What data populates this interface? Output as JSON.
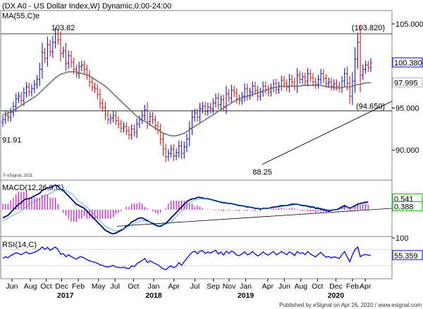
{
  "chart_data": [
    {
      "type": "candlestick",
      "title": "(DX A0 - US Dollar Index,W) Dynamic,0:00-24:00",
      "indicator_label": "MA(55,C)e",
      "ylim": [
        86.5,
        106.5
      ],
      "y_ticks": [
        "105.000",
        "95.000",
        "90.000"
      ],
      "y_tick_values": [
        105,
        95,
        90
      ],
      "price_tags": [
        {
          "label": "100.380",
          "value": 100.38,
          "color": "#0000ff"
        },
        {
          "label": "97.995",
          "value": 97.995,
          "color": "#b4b4b4"
        }
      ],
      "annotations": [
        {
          "text": "103.82",
          "t": 0.16,
          "value": 103.82
        },
        {
          "text": "91.91",
          "t": 0.0,
          "value": 91.91
        },
        {
          "text": "88.25",
          "t": 0.705,
          "value": 88.25
        },
        {
          "text": "(103.820)",
          "t": 0.94,
          "value": 103.82
        },
        {
          "text": "(94.650)",
          "t": 0.94,
          "value": 94.65
        }
      ],
      "horizontal_lines": [
        103.82,
        94.65
      ],
      "trendline": {
        "from": [
          0.705,
          88.3
        ],
        "to": [
          1.0,
          95.8
        ]
      },
      "close": [
        93.6,
        94.1,
        93.9,
        94.5,
        95.2,
        96.1,
        96.4,
        95.9,
        96.8,
        97.5,
        96.9,
        97.3,
        97.8,
        98.4,
        99.6,
        101.6,
        100.9,
        102.5,
        101.7,
        102.8,
        103.82,
        103.1,
        101.5,
        101.8,
        100.3,
        101.2,
        100.4,
        99.6,
        99.1,
        99.9,
        100.1,
        99.6,
        98.9,
        98.1,
        97.5,
        97.3,
        96.6,
        95.6,
        95.1,
        94.2,
        93.6,
        93.8,
        94.1,
        93.5,
        93.1,
        92.6,
        92.8,
        92.3,
        91.8,
        92.5,
        92.1,
        93.1,
        93.6,
        94.1,
        94.8,
        93.4,
        94.0,
        93.6,
        92.9,
        92.4,
        91.3,
        90.1,
        89.2,
        89.6,
        90.1,
        89.3,
        89.7,
        90.5,
        89.6,
        90.4,
        91.3,
        92.6,
        93.9,
        94.4,
        93.9,
        94.9,
        95.2,
        94.6,
        95.1,
        94.9,
        95.6,
        96.2,
        95.4,
        96.0,
        95.2,
        96.7,
        96.2,
        97.1,
        96.8,
        96.1,
        95.9,
        96.4,
        97.3,
        96.5,
        96.9,
        97.6,
        97.1,
        96.4,
        96.9,
        97.6,
        97.2,
        96.9,
        97.4,
        97.9,
        97.2,
        97.6,
        98.3,
        97.9,
        97.5,
        98.4,
        98.1,
        97.6,
        98.9,
        98.4,
        98.7,
        98.2,
        99.1,
        98.6,
        98.1,
        97.8,
        98.4,
        99.1,
        98.5,
        97.9,
        98.1,
        97.6,
        97.9,
        97.6,
        97.4,
        98.2,
        99.1,
        97.9,
        96.4,
        98.2,
        100.8,
        102.8,
        98.9,
        99.6,
        100.1,
        99.8,
        100.38
      ],
      "ma_55": [
        94.2,
        94.3,
        94.4,
        94.5,
        94.7,
        94.9,
        95.1,
        95.3,
        95.5,
        95.7,
        95.9,
        96.1,
        96.3,
        96.5,
        96.8,
        97.1,
        97.4,
        97.7,
        98.0,
        98.3,
        98.6,
        98.8,
        99.0,
        99.1,
        99.2,
        99.3,
        99.3,
        99.3,
        99.3,
        99.2,
        99.1,
        99.0,
        98.9,
        98.8,
        98.6,
        98.4,
        98.2,
        98.0,
        97.8,
        97.6,
        97.3,
        97.0,
        96.7,
        96.4,
        96.1,
        95.8,
        95.5,
        95.2,
        94.9,
        94.6,
        94.3,
        94.0,
        93.8,
        93.6,
        93.4,
        93.2,
        93.0,
        92.8,
        92.6,
        92.4,
        92.2,
        92.0,
        91.9,
        91.8,
        91.7,
        91.7,
        91.7,
        91.8,
        91.9,
        92.0,
        92.2,
        92.4,
        92.6,
        92.8,
        93.0,
        93.2,
        93.4,
        93.6,
        93.8,
        94.0,
        94.2,
        94.4,
        94.6,
        94.8,
        95.0,
        95.2,
        95.4,
        95.6,
        95.8,
        96.0,
        96.1,
        96.2,
        96.3,
        96.4,
        96.5,
        96.6,
        96.7,
        96.8,
        96.9,
        97.0,
        97.1,
        97.2,
        97.3,
        97.4,
        97.5,
        97.5,
        97.6,
        97.6,
        97.6,
        97.6,
        97.6,
        97.6,
        97.6,
        97.6,
        97.7,
        97.7,
        97.7,
        97.7,
        97.7,
        97.7,
        97.7,
        97.7,
        97.6,
        97.6,
        97.5,
        97.5,
        97.4,
        97.4,
        97.4,
        97.4,
        97.5,
        97.5,
        97.5,
        97.6,
        97.7,
        97.8,
        97.8,
        97.9,
        98.0,
        98.0,
        97.995
      ],
      "x_labels": [
        "Jun",
        "Aug",
        "Oct",
        "Dec",
        "Feb",
        "May",
        "Jul",
        "Oct",
        "Jan",
        "Apr",
        "Jul",
        "Sep",
        "Nov",
        "Jan",
        "Apr",
        "Jun",
        "Aug",
        "Oct",
        "Dec",
        "Feb",
        "Apr"
      ],
      "x_label_positions": [
        0.025,
        0.075,
        0.118,
        0.16,
        0.205,
        0.26,
        0.305,
        0.355,
        0.41,
        0.465,
        0.522,
        0.572,
        0.615,
        0.66,
        0.72,
        0.765,
        0.81,
        0.855,
        0.905,
        0.95,
        0.985
      ],
      "year_labels": [
        {
          "text": "2017",
          "t": 0.17
        },
        {
          "text": "2018",
          "t": 0.41
        },
        {
          "text": "2019",
          "t": 0.66
        },
        {
          "text": "2020",
          "t": 0.905
        }
      ],
      "watermark": "© eSignal, 2011"
    },
    {
      "type": "line",
      "title": "MACD(12,26,9,C)",
      "ylim": [
        -1.9,
        2.1
      ],
      "price_tags": [
        {
          "label": "0.541",
          "value": 0.541,
          "color": "#00c000"
        },
        {
          "label": "0.388",
          "value": 0.388,
          "color": "#00c000"
        }
      ],
      "trendline": {
        "from": [
          0.31,
          -1.2
        ],
        "to": [
          1.0,
          0.1
        ]
      },
      "series": [
        {
          "name": "",
          "color": "#000080",
          "values": [
            -0.6,
            -0.5,
            -0.4,
            -0.2,
            0.0,
            0.2,
            0.4,
            0.5,
            0.7,
            0.8,
            0.8,
            0.9,
            1.0,
            1.1,
            1.2,
            1.4,
            1.5,
            1.6,
            1.6,
            1.7,
            1.8,
            1.7,
            1.5,
            1.4,
            1.2,
            1.0,
            0.8,
            0.6,
            0.4,
            0.3,
            0.2,
            0.1,
            -0.1,
            -0.3,
            -0.5,
            -0.7,
            -0.9,
            -1.1,
            -1.3,
            -1.5,
            -1.6,
            -1.7,
            -1.75,
            -1.7,
            -1.6,
            -1.5,
            -1.4,
            -1.2,
            -1.1,
            -0.9,
            -0.8,
            -0.7,
            -0.6,
            -0.6,
            -0.7,
            -0.8,
            -0.9,
            -1.0,
            -1.1,
            -1.2,
            -1.2,
            -1.1,
            -1.0,
            -0.8,
            -0.6,
            -0.4,
            -0.2,
            0.0,
            0.2,
            0.4,
            0.6,
            0.7,
            0.8,
            0.8,
            0.9,
            0.9,
            0.85,
            0.8,
            0.8,
            0.75,
            0.7,
            0.65,
            0.6,
            0.55,
            0.5,
            0.5,
            0.45,
            0.45,
            0.4,
            0.35,
            0.3,
            0.3,
            0.25,
            0.2,
            0.2,
            0.15,
            0.1,
            0.1,
            0.05,
            0.1,
            0.1,
            0.1,
            0.15,
            0.2,
            0.2,
            0.25,
            0.3,
            0.3,
            0.3,
            0.35,
            0.4,
            0.4,
            0.4,
            0.35,
            0.3,
            0.3,
            0.25,
            0.2,
            0.2,
            0.1,
            0.1,
            0.05,
            0.0,
            -0.05,
            -0.1,
            -0.05,
            0.0,
            0.0,
            0.1,
            0.2,
            0.3,
            0.2,
            0.1,
            0.2,
            0.3,
            0.4,
            0.45,
            0.5,
            0.55,
            0.541
          ]
        },
        {
          "name": "",
          "color": "#00a0a0",
          "values": [
            -0.8,
            -0.7,
            -0.6,
            -0.5,
            -0.4,
            -0.3,
            -0.2,
            -0.1,
            0.1,
            0.2,
            0.4,
            0.5,
            0.6,
            0.7,
            0.8,
            0.9,
            1.0,
            1.1,
            1.2,
            1.3,
            1.4,
            1.5,
            1.5,
            1.5,
            1.4,
            1.3,
            1.2,
            1.0,
            0.8,
            0.6,
            0.5,
            0.3,
            0.2,
            0.0,
            -0.2,
            -0.4,
            -0.6,
            -0.8,
            -1.0,
            -1.2,
            -1.3,
            -1.4,
            -1.5,
            -1.55,
            -1.5,
            -1.45,
            -1.4,
            -1.3,
            -1.2,
            -1.1,
            -1.0,
            -0.9,
            -0.85,
            -0.8,
            -0.8,
            -0.85,
            -0.9,
            -0.95,
            -1.0,
            -1.05,
            -1.1,
            -1.1,
            -1.05,
            -1.0,
            -0.9,
            -0.7,
            -0.5,
            -0.3,
            -0.1,
            0.1,
            0.3,
            0.5,
            0.6,
            0.7,
            0.75,
            0.8,
            0.8,
            0.8,
            0.78,
            0.75,
            0.72,
            0.68,
            0.63,
            0.58,
            0.55,
            0.52,
            0.48,
            0.45,
            0.42,
            0.38,
            0.34,
            0.31,
            0.28,
            0.24,
            0.21,
            0.18,
            0.14,
            0.12,
            0.1,
            0.09,
            0.09,
            0.1,
            0.12,
            0.15,
            0.17,
            0.2,
            0.23,
            0.26,
            0.28,
            0.3,
            0.33,
            0.36,
            0.38,
            0.37,
            0.35,
            0.33,
            0.3,
            0.27,
            0.24,
            0.2,
            0.16,
            0.12,
            0.08,
            0.04,
            0.0,
            -0.02,
            -0.02,
            -0.01,
            0.03,
            0.08,
            0.14,
            0.17,
            0.16,
            0.17,
            0.2,
            0.25,
            0.3,
            0.35,
            0.38,
            0.388
          ]
        }
      ]
    },
    {
      "type": "line",
      "title": "RSI(14,C)",
      "ylim": [
        0,
        100
      ],
      "y_ticks": [
        "100"
      ],
      "y_tick_values": [
        100
      ],
      "price_tags": [
        {
          "label": "55.359",
          "value": 55.359,
          "color": "#0000ff"
        }
      ],
      "series": [
        {
          "name": "",
          "color": "#0000ff",
          "values": [
            48,
            52,
            50,
            55,
            58,
            62,
            60,
            57,
            61,
            64,
            59,
            61,
            63,
            66,
            70,
            76,
            70,
            75,
            68,
            72,
            76,
            70,
            58,
            60,
            52,
            57,
            53,
            49,
            46,
            51,
            52,
            49,
            45,
            42,
            40,
            39,
            36,
            32,
            31,
            28,
            27,
            29,
            31,
            27,
            26,
            25,
            27,
            24,
            23,
            30,
            28,
            35,
            39,
            43,
            48,
            38,
            42,
            39,
            35,
            33,
            27,
            23,
            20,
            26,
            30,
            25,
            29,
            38,
            31,
            40,
            48,
            56,
            63,
            66,
            59,
            66,
            67,
            60,
            64,
            61,
            65,
            68,
            59,
            64,
            56,
            66,
            60,
            66,
            63,
            56,
            55,
            59,
            64,
            57,
            59,
            65,
            59,
            54,
            58,
            64,
            59,
            56,
            61,
            65,
            57,
            60,
            65,
            61,
            57,
            64,
            61,
            55,
            65,
            60,
            62,
            57,
            65,
            59,
            55,
            52,
            58,
            63,
            56,
            51,
            53,
            49,
            52,
            50,
            48,
            57,
            65,
            52,
            40,
            57,
            70,
            76,
            52,
            56,
            58,
            56,
            55.359
          ]
        }
      ]
    }
  ],
  "footer": {
    "text": "Published by eSignal on Apr 26, 2020 / www.esignal.com"
  }
}
